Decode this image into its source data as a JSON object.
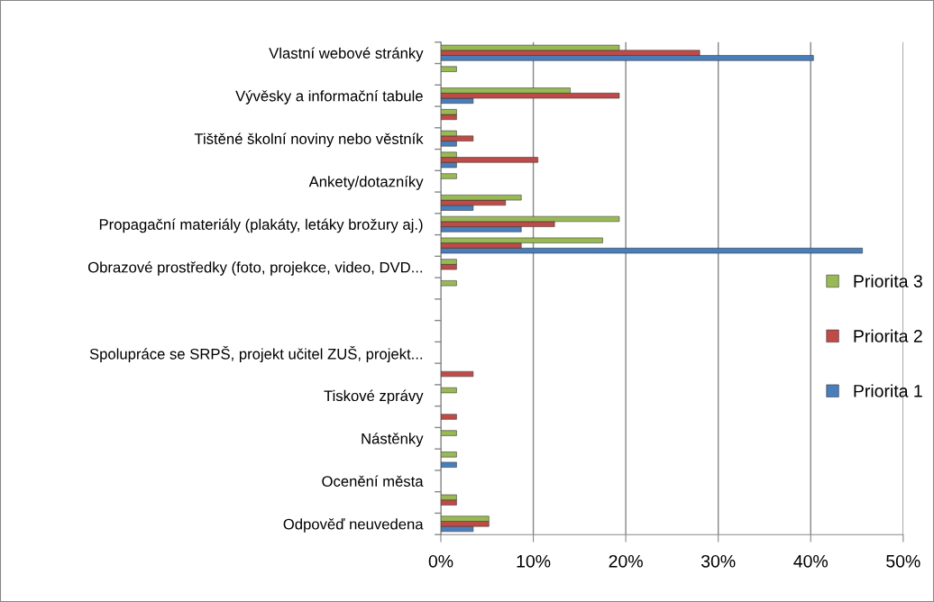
{
  "chart_data": {
    "type": "bar",
    "orientation": "horizontal",
    "categories": [
      "Vlastní webové stránky",
      null,
      "Vývěsky a informační tabule",
      null,
      "Tištěné školní noviny nebo věstník",
      null,
      "Ankety/dotazníky",
      null,
      "Propagační materiály (plakáty, letáky brožury aj.)",
      null,
      "Obrazové prostředky (foto, projekce, video, DVD...",
      null,
      null,
      null,
      "Spolupráce se SRPŠ, projekt učitel ZUŠ, projekt...",
      null,
      "Tiskové zprávy",
      null,
      "Nástěnky",
      null,
      "Ocenění města",
      null,
      "Odpověď neuvedena"
    ],
    "series": [
      {
        "name": "Priorita 1",
        "color": "#4a7ebb",
        "values": [
          40.3,
          null,
          3.5,
          null,
          1.7,
          1.7,
          null,
          3.5,
          8.7,
          45.6,
          null,
          null,
          null,
          null,
          null,
          null,
          null,
          null,
          null,
          1.7,
          null,
          null,
          3.5
        ]
      },
      {
        "name": "Priorita 2",
        "color": "#be4b48",
        "values": [
          28.0,
          null,
          19.3,
          1.7,
          3.5,
          10.5,
          null,
          7.0,
          12.3,
          8.7,
          1.7,
          null,
          null,
          null,
          null,
          3.5,
          null,
          1.7,
          null,
          null,
          null,
          1.7,
          5.2
        ]
      },
      {
        "name": "Priorita 3",
        "color": "#98b954",
        "values": [
          19.3,
          1.7,
          14.0,
          1.7,
          1.7,
          1.7,
          1.7,
          8.7,
          19.3,
          17.5,
          1.7,
          1.7,
          null,
          null,
          null,
          null,
          1.7,
          null,
          1.7,
          1.7,
          null,
          1.7,
          5.2
        ]
      }
    ],
    "xlim": [
      0,
      50
    ],
    "xticks": [
      {
        "value": 0,
        "label": "0%"
      },
      {
        "value": 10,
        "label": "10%"
      },
      {
        "value": 20,
        "label": "20%"
      },
      {
        "value": 30,
        "label": "30%"
      },
      {
        "value": 40,
        "label": "40%"
      },
      {
        "value": 50,
        "label": "50%"
      }
    ],
    "grid": "x",
    "legend": "right"
  }
}
